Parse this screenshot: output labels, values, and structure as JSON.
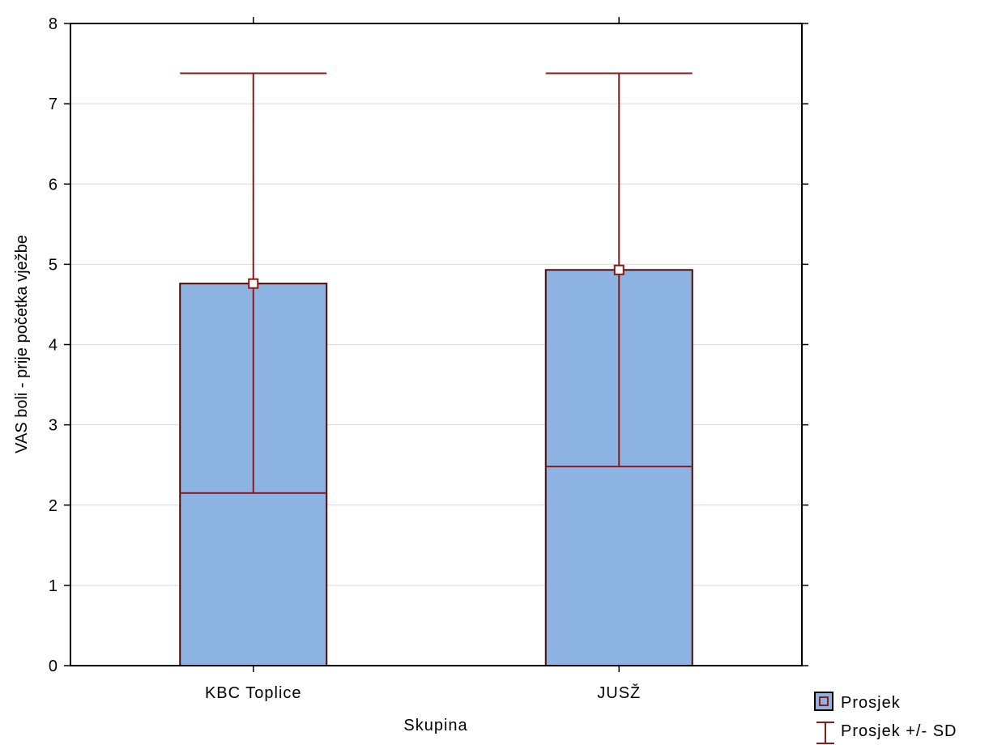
{
  "chart_data": {
    "type": "bar",
    "title": "",
    "xlabel": "Skupina",
    "ylabel": "VAS boli - prije početka vježbe",
    "ylim": [
      0,
      8
    ],
    "yticks": [
      "0",
      "1",
      "2",
      "3",
      "4",
      "5",
      "6",
      "7",
      "8"
    ],
    "grid": true,
    "legend_position": "bottom-right",
    "categories": [
      "KBC Toplice",
      "JUSŽ"
    ],
    "series": [
      {
        "name": "Prosjek",
        "values": [
          4.76,
          4.93
        ],
        "sd_low": [
          2.15,
          2.48
        ],
        "sd_high": [
          7.38,
          7.38
        ]
      }
    ],
    "legend": [
      {
        "label": "Prosjek",
        "symbol": "mean-marker"
      },
      {
        "label": "Prosjek +/- SD",
        "symbol": "whisker"
      }
    ],
    "colors": {
      "bar_fill": "#8db3e2",
      "bar_stroke": "#4a0a0a",
      "whisker": "#8b1a1a",
      "grid": "#d9d9d9",
      "axis": "#000000"
    }
  }
}
